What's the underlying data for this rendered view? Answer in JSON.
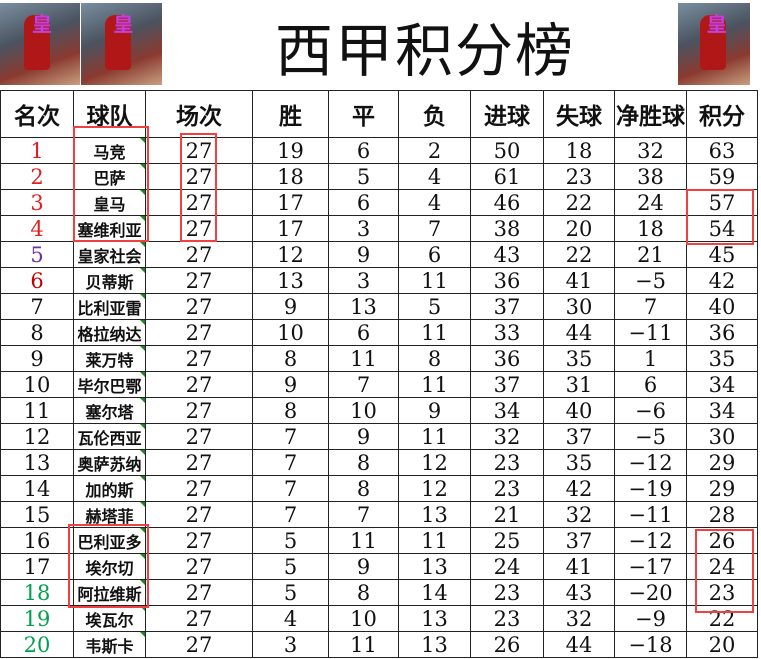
{
  "title": "西甲积分榜",
  "columns": [
    "名次",
    "球队",
    "场次",
    "胜",
    "平",
    "负",
    "进球",
    "失球",
    "净胜球",
    "积分"
  ],
  "rank_colors": {
    "1": "#e02020",
    "2": "#e02020",
    "3": "#e02020",
    "4": "#e02020",
    "5": "#7030a0",
    "6": "#c00000",
    "18": "#00a050",
    "19": "#00a050",
    "20": "#00a050"
  },
  "highlight_color": "#f04040",
  "rows": [
    [
      "1",
      "马竞",
      "27",
      "19",
      "6",
      "2",
      "50",
      "18",
      "32",
      "63"
    ],
    [
      "2",
      "巴萨",
      "27",
      "18",
      "5",
      "4",
      "61",
      "23",
      "38",
      "59"
    ],
    [
      "3",
      "皇马",
      "27",
      "17",
      "6",
      "4",
      "46",
      "22",
      "24",
      "57"
    ],
    [
      "4",
      "塞维利亚",
      "27",
      "17",
      "3",
      "7",
      "38",
      "20",
      "18",
      "54"
    ],
    [
      "5",
      "皇家社会",
      "27",
      "12",
      "9",
      "6",
      "43",
      "22",
      "21",
      "45"
    ],
    [
      "6",
      "贝蒂斯",
      "27",
      "13",
      "3",
      "11",
      "36",
      "41",
      "−5",
      "42"
    ],
    [
      "7",
      "比利亚雷",
      "27",
      "9",
      "13",
      "5",
      "37",
      "30",
      "7",
      "40"
    ],
    [
      "8",
      "格拉纳达",
      "27",
      "10",
      "6",
      "11",
      "33",
      "44",
      "−11",
      "36"
    ],
    [
      "9",
      "莱万特",
      "27",
      "8",
      "11",
      "8",
      "36",
      "35",
      "1",
      "35"
    ],
    [
      "10",
      "毕尔巴鄂",
      "27",
      "9",
      "7",
      "11",
      "37",
      "31",
      "6",
      "34"
    ],
    [
      "11",
      "塞尔塔",
      "27",
      "8",
      "10",
      "9",
      "34",
      "40",
      "−6",
      "34"
    ],
    [
      "12",
      "瓦伦西亚",
      "27",
      "7",
      "9",
      "11",
      "32",
      "37",
      "−5",
      "30"
    ],
    [
      "13",
      "奥萨苏纳",
      "27",
      "7",
      "8",
      "12",
      "23",
      "35",
      "−12",
      "29"
    ],
    [
      "14",
      "加的斯",
      "27",
      "7",
      "8",
      "12",
      "23",
      "42",
      "−19",
      "29"
    ],
    [
      "15",
      "赫塔菲",
      "27",
      "7",
      "7",
      "13",
      "21",
      "32",
      "−11",
      "28"
    ],
    [
      "16",
      "巴利亚多",
      "27",
      "5",
      "11",
      "11",
      "25",
      "37",
      "−12",
      "26"
    ],
    [
      "17",
      "埃尔切",
      "27",
      "5",
      "9",
      "13",
      "24",
      "41",
      "−17",
      "24"
    ],
    [
      "18",
      "阿拉维斯",
      "27",
      "5",
      "8",
      "14",
      "23",
      "43",
      "−20",
      "23"
    ],
    [
      "19",
      "埃瓦尔",
      "27",
      "4",
      "10",
      "13",
      "23",
      "32",
      "−9",
      "22"
    ],
    [
      "20",
      "韦斯卡",
      "27",
      "3",
      "11",
      "13",
      "26",
      "44",
      "−18",
      "20"
    ]
  ]
}
